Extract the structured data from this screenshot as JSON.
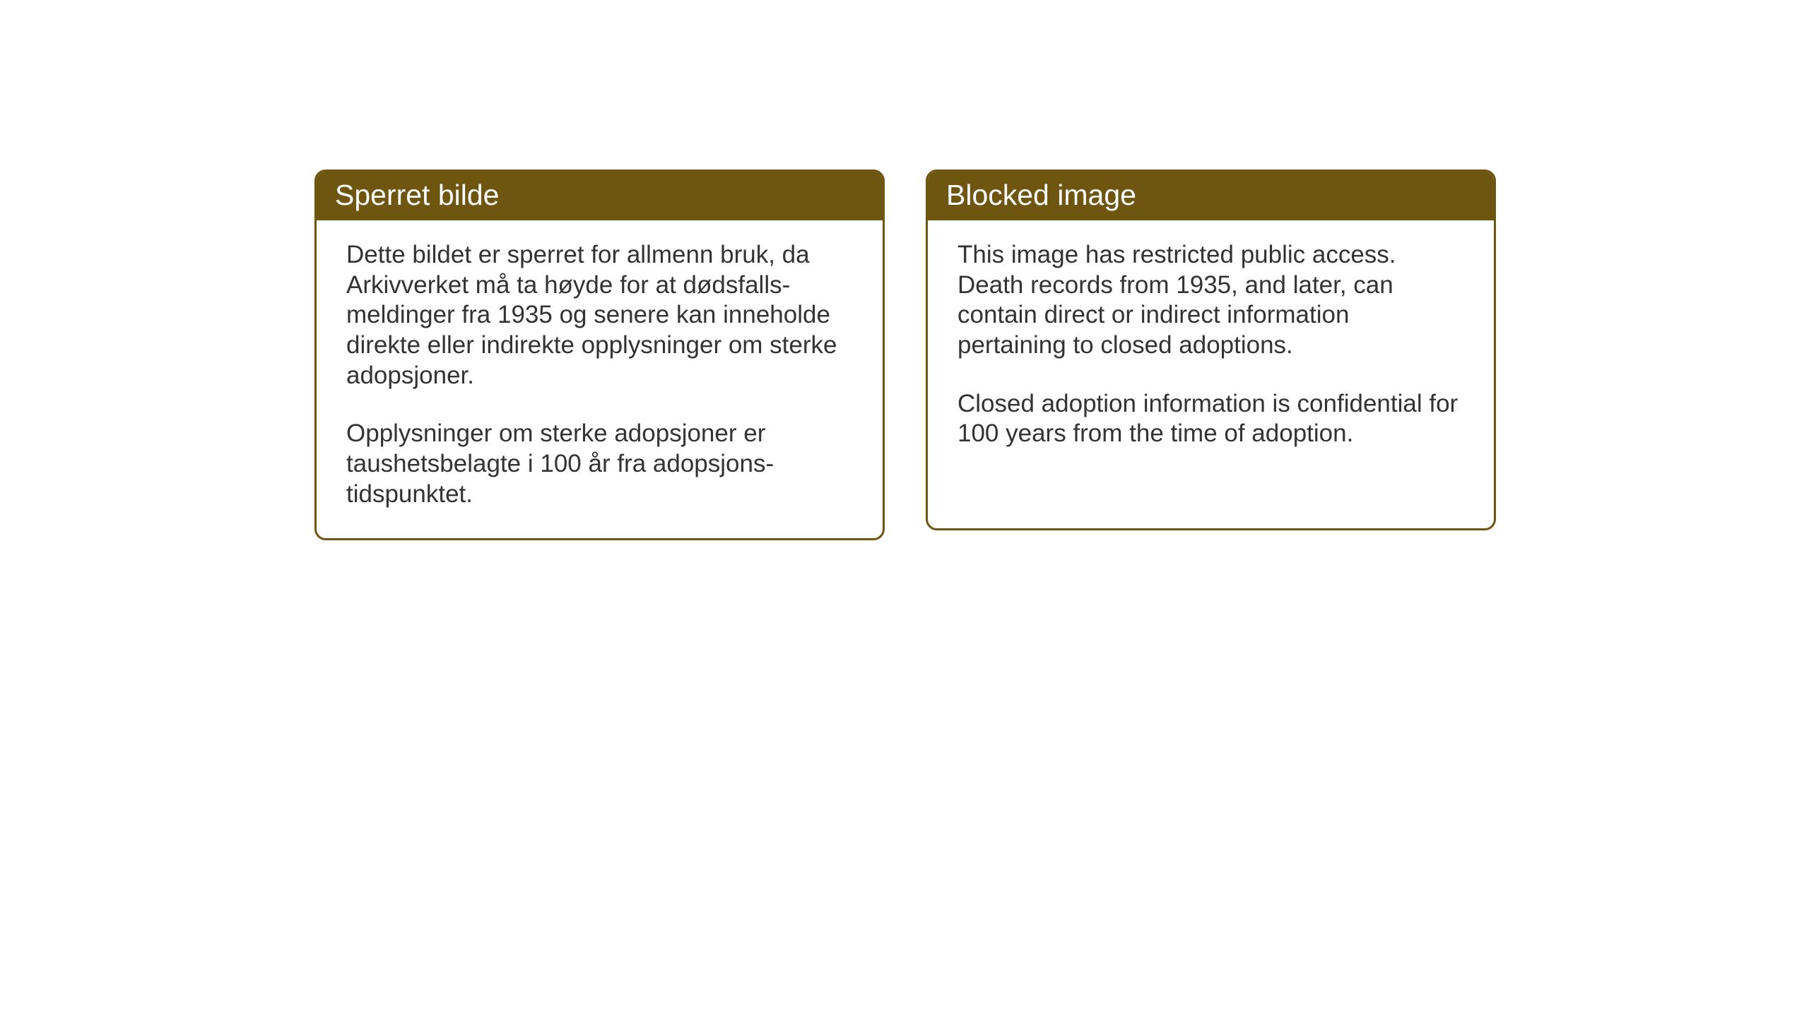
{
  "layout": {
    "background_color": "#ffffff",
    "card_border_color": "#6f5610",
    "card_border_width": 3,
    "card_border_radius": 16,
    "header_bg_color": "#6f5610",
    "header_text_color": "#ffffff",
    "body_text_color": "#333333",
    "header_fontsize": 41,
    "body_fontsize": 35
  },
  "left_card": {
    "title": "Sperret bilde",
    "paragraph1": "Dette bildet er sperret for allmenn bruk, da Arkivverket må ta høyde for at dødsfalls-meldinger fra 1935 og senere kan inneholde direkte eller indirekte opplysninger om sterke adopsjoner.",
    "paragraph2": "Opplysninger om sterke adopsjoner er taushetsbelagte i 100 år fra adopsjons-tidspunktet."
  },
  "right_card": {
    "title": "Blocked image",
    "paragraph1": "This image has restricted public access. Death records from 1935, and later, can contain direct or indirect information pertaining to closed adoptions.",
    "paragraph2": "Closed adoption information is confidential for 100 years from the time of adoption."
  }
}
